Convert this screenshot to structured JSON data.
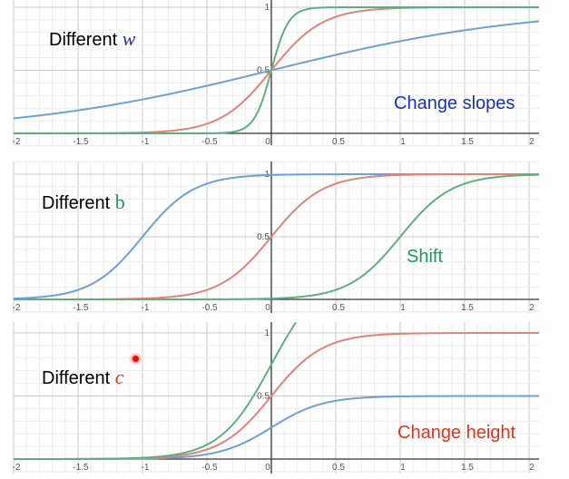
{
  "chart_data": [
    {
      "type": "line",
      "title": "",
      "xlim": [
        -2.05,
        2.05
      ],
      "ylim": [
        0,
        1
      ],
      "x_ticks": [
        "-2",
        "-1.5",
        "-1",
        "-0.5",
        "0",
        "0.5",
        "1",
        "1.5",
        "2"
      ],
      "y_ticks": [
        "0.5",
        "1"
      ],
      "grid": true,
      "caption_text": "Different",
      "caption_symbol": "w",
      "annotation": "Change slopes",
      "series": [
        {
          "color": "#6fa0cf",
          "formula": "sigmoid(w*x)",
          "w": 1,
          "b": 0,
          "c": 1
        },
        {
          "color": "#e0847a",
          "formula": "sigmoid(w*x)",
          "w": 5,
          "b": 0,
          "c": 1
        },
        {
          "color": "#62ad80",
          "formula": "sigmoid(w*x)",
          "w": 15,
          "b": 0,
          "c": 1
        }
      ]
    },
    {
      "type": "line",
      "title": "",
      "xlim": [
        -2.05,
        2.05
      ],
      "ylim": [
        0,
        1
      ],
      "x_ticks": [
        "-2",
        "-1.5",
        "-1",
        "-0.5",
        "0",
        "0.5",
        "1",
        "1.5",
        "2"
      ],
      "y_ticks": [
        "0.5",
        "1"
      ],
      "grid": true,
      "caption_text": "Different",
      "caption_symbol": "b",
      "annotation": "Shift",
      "series": [
        {
          "color": "#6fa0cf",
          "formula": "sigmoid(w*x+b)",
          "w": 5,
          "b": 5,
          "c": 1
        },
        {
          "color": "#e0847a",
          "formula": "sigmoid(w*x+b)",
          "w": 5,
          "b": 0,
          "c": 1
        },
        {
          "color": "#62ad80",
          "formula": "sigmoid(w*x+b)",
          "w": 5,
          "b": -5,
          "c": 1
        }
      ]
    },
    {
      "type": "line",
      "title": "",
      "xlim": [
        -2.05,
        2.05
      ],
      "ylim": [
        0,
        1
      ],
      "x_ticks": [
        "-2",
        "-1.5",
        "-1",
        "-0.5",
        "0",
        "0.5",
        "1",
        "1.5",
        "2"
      ],
      "y_ticks": [
        "0.5",
        "1"
      ],
      "grid": true,
      "caption_text": "Different",
      "caption_symbol": "c",
      "annotation": "Change height",
      "series": [
        {
          "color": "#6fa0cf",
          "formula": "c*sigmoid(w*x)",
          "w": 5,
          "b": 0,
          "c": 0.5
        },
        {
          "color": "#e0847a",
          "formula": "c*sigmoid(w*x)",
          "w": 5,
          "b": 0,
          "c": 1
        },
        {
          "color": "#62ad80",
          "formula": "c*sigmoid(w*x)",
          "w": 5,
          "b": 0,
          "c": 1.5
        }
      ]
    }
  ]
}
